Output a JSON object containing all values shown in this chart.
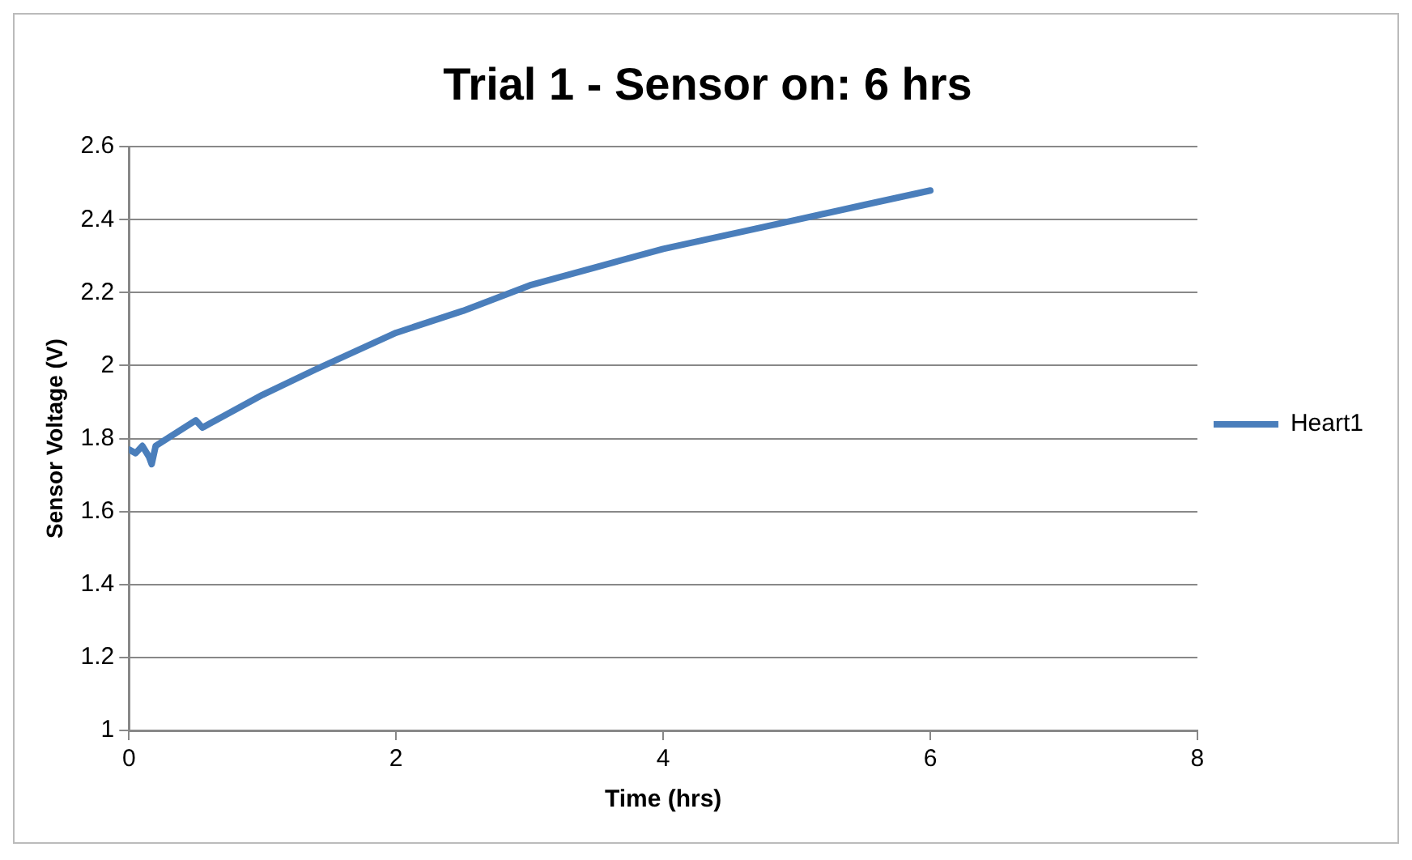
{
  "chart_data": {
    "type": "line",
    "title": "Trial 1 - Sensor on: 6 hrs",
    "xlabel": "Time (hrs)",
    "ylabel": "Sensor Voltage (V)",
    "x": [
      0,
      0.05,
      0.1,
      0.15,
      0.17,
      0.2,
      0.5,
      0.55,
      0.6,
      1.0,
      1.4,
      2.0,
      2.5,
      3,
      3.5,
      4,
      4.5,
      5,
      5.5,
      6
    ],
    "series": [
      {
        "name": "Heart1",
        "color": "#4a7ebb",
        "values": [
          1.77,
          1.76,
          1.78,
          1.75,
          1.73,
          1.78,
          1.85,
          1.83,
          1.84,
          1.92,
          1.99,
          2.09,
          2.15,
          2.22,
          2.27,
          2.32,
          2.36,
          2.4,
          2.44,
          2.48
        ]
      }
    ],
    "xlim": [
      0,
      8
    ],
    "xticks": [
      0,
      2,
      4,
      6,
      8
    ],
    "ylim": [
      1,
      2.6
    ],
    "yticks": [
      1,
      1.2,
      1.4,
      1.6,
      1.8,
      2,
      2.2,
      2.4,
      2.6
    ],
    "grid": "y",
    "legend": "right",
    "marker": "none",
    "line_style": "solid"
  }
}
